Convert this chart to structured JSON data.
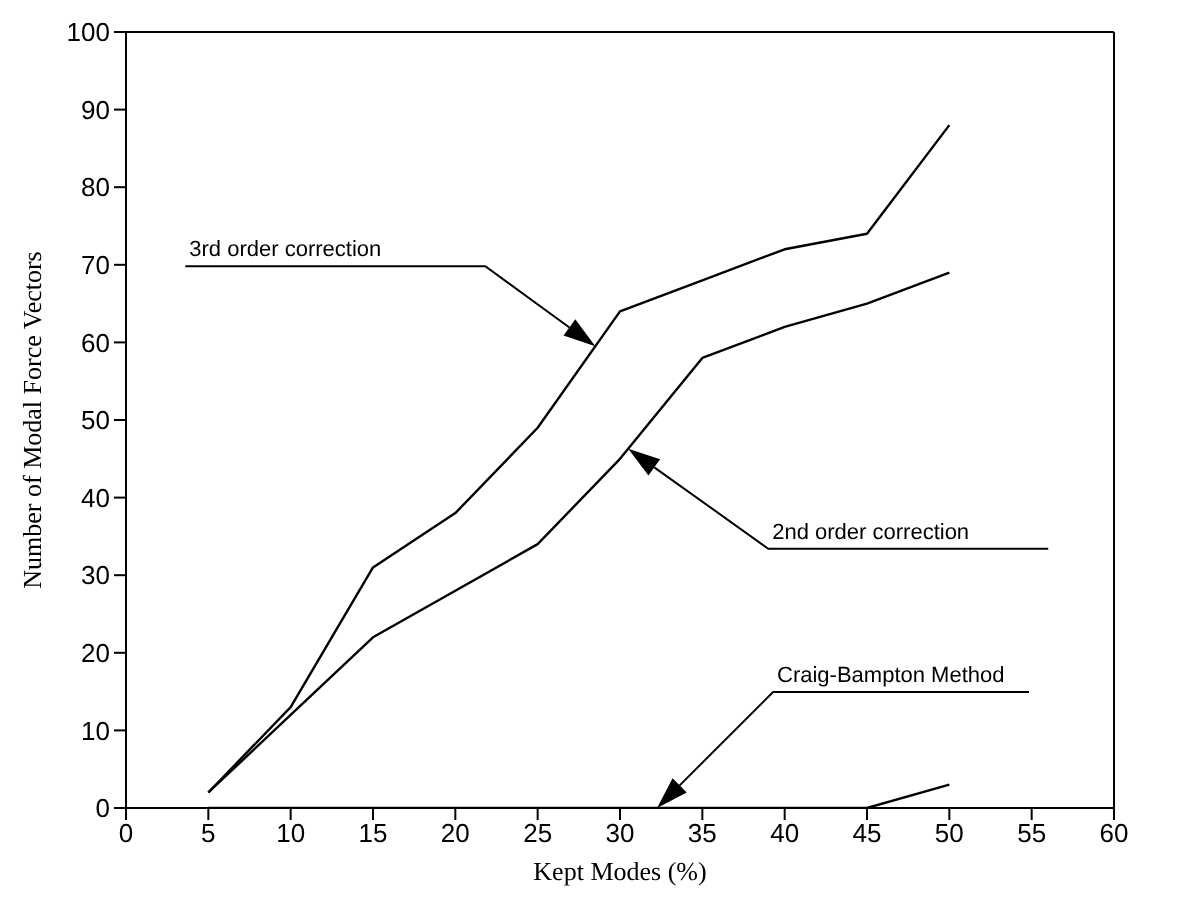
{
  "chart_data": {
    "type": "line",
    "xlabel": "Kept Modes (%)",
    "ylabel": "Number of Modal Force Vectors",
    "x": [
      5,
      10,
      15,
      20,
      25,
      30,
      35,
      40,
      45,
      50
    ],
    "series": [
      {
        "name": "3rd order correction",
        "color": "#000000",
        "values": [
          2,
          13,
          31,
          38,
          49,
          64,
          68,
          72,
          74,
          88
        ]
      },
      {
        "name": "2nd order correction",
        "color": "#000000",
        "values": [
          2,
          12,
          22,
          28,
          34,
          45,
          58,
          62,
          65,
          69
        ]
      },
      {
        "name": "Craig-Bampton Method",
        "color": "#000000",
        "values": [
          0,
          0,
          0,
          0,
          0,
          0,
          0,
          0,
          0,
          3
        ]
      }
    ],
    "xlim": [
      0,
      60
    ],
    "xticks": [
      0,
      5,
      10,
      15,
      20,
      25,
      30,
      35,
      40,
      45,
      50,
      55,
      60
    ],
    "ylim": [
      0,
      100
    ],
    "yticks": [
      0,
      10,
      20,
      30,
      40,
      50,
      60,
      70,
      80,
      90,
      100
    ],
    "grid": false,
    "legend": false,
    "marker": "none",
    "line_style": "solid"
  }
}
